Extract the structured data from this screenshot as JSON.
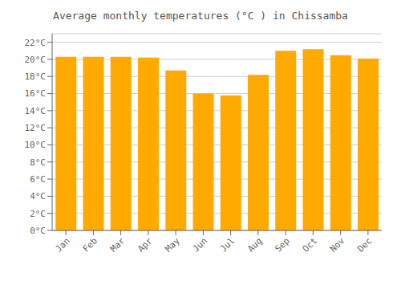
{
  "chart_data": {
    "type": "bar",
    "title": "Average monthly temperatures (°C ) in Chissamba",
    "categories": [
      "Jan",
      "Feb",
      "Mar",
      "Apr",
      "May",
      "Jun",
      "Jul",
      "Aug",
      "Sep",
      "Oct",
      "Nov",
      "Dec"
    ],
    "values": [
      20.3,
      20.3,
      20.3,
      20.2,
      18.7,
      16.0,
      15.8,
      18.2,
      21.0,
      21.2,
      20.5,
      20.1
    ],
    "color": "#FFAA00",
    "ylim": [
      0,
      23
    ],
    "yticks": [
      {
        "value": 0,
        "label": "0°C"
      },
      {
        "value": 2,
        "label": "2°C"
      },
      {
        "value": 4,
        "label": "4°C"
      },
      {
        "value": 6,
        "label": "6°C"
      },
      {
        "value": 8,
        "label": "8°C"
      },
      {
        "value": 10,
        "label": "10°C"
      },
      {
        "value": 12,
        "label": "12°C"
      },
      {
        "value": 14,
        "label": "14°C"
      },
      {
        "value": 16,
        "label": "16°C"
      },
      {
        "value": 18,
        "label": "18°C"
      },
      {
        "value": 20,
        "label": "20°C"
      },
      {
        "value": 22,
        "label": "22°C"
      }
    ],
    "grid": true
  }
}
